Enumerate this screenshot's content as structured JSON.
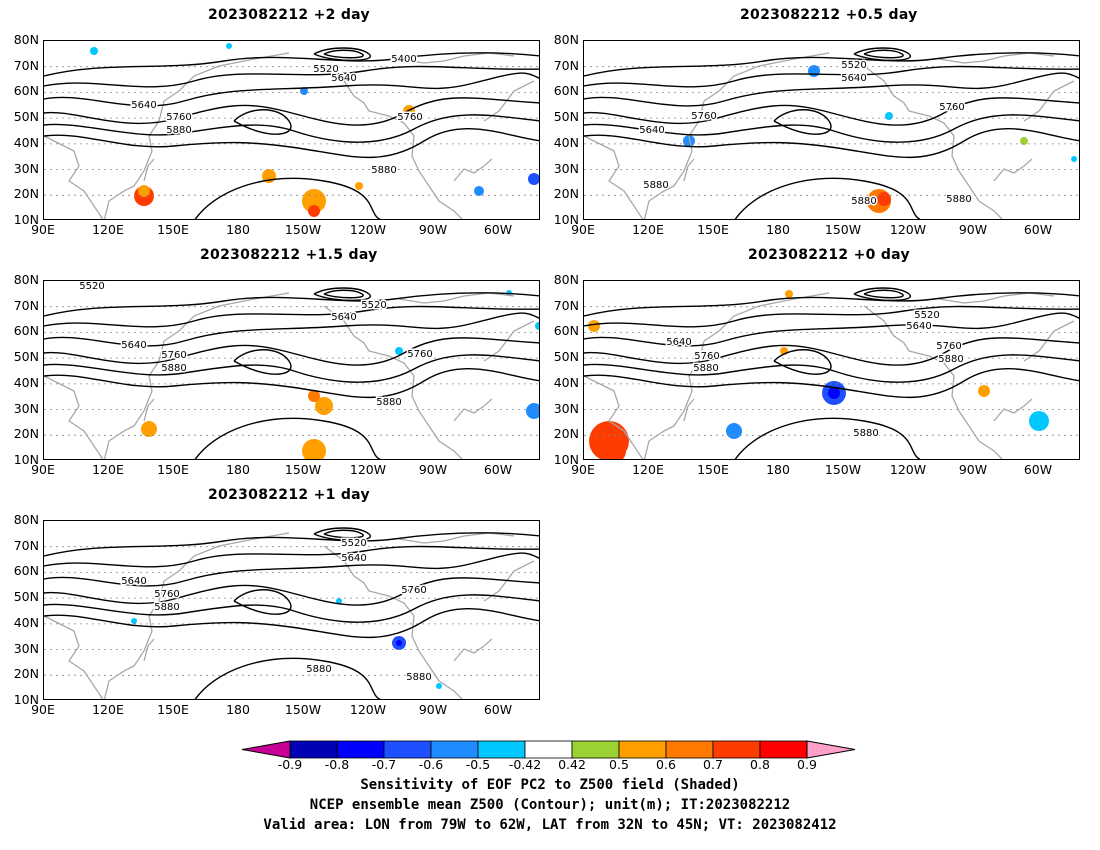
{
  "panels": [
    {
      "id": "p1",
      "title": "2023082212 +2 day",
      "contour_labels": [
        {
          "text": "5400"
        },
        {
          "text": "5520"
        },
        {
          "text": "5640"
        },
        {
          "text": "5640"
        },
        {
          "text": "5760"
        },
        {
          "text": "5760"
        },
        {
          "text": "5880"
        },
        {
          "text": "5880"
        }
      ]
    },
    {
      "id": "p2",
      "title": "2023082212 +0.5 day",
      "contour_labels": [
        {
          "text": "5520"
        },
        {
          "text": "5640"
        },
        {
          "text": "5640"
        },
        {
          "text": "5760"
        },
        {
          "text": "5760"
        },
        {
          "text": "5880"
        },
        {
          "text": "5880"
        },
        {
          "text": "5880"
        }
      ]
    },
    {
      "id": "p3",
      "title": "2023082212 +1.5 day",
      "contour_labels": [
        {
          "text": "5520"
        },
        {
          "text": "5520"
        },
        {
          "text": "5640"
        },
        {
          "text": "5640"
        },
        {
          "text": "5760"
        },
        {
          "text": "5760"
        },
        {
          "text": "5880"
        },
        {
          "text": "5880"
        }
      ]
    },
    {
      "id": "p4",
      "title": "2023082212 +0 day",
      "contour_labels": [
        {
          "text": "5520"
        },
        {
          "text": "5640"
        },
        {
          "text": "5640"
        },
        {
          "text": "5760"
        },
        {
          "text": "5760"
        },
        {
          "text": "5880"
        },
        {
          "text": "5880"
        },
        {
          "text": "5880"
        }
      ]
    },
    {
      "id": "p5",
      "title": "2023082212 +1 day",
      "contour_labels": [
        {
          "text": "5520"
        },
        {
          "text": "5640"
        },
        {
          "text": "5640"
        },
        {
          "text": "5760"
        },
        {
          "text": "5760"
        },
        {
          "text": "5880"
        },
        {
          "text": "5880"
        },
        {
          "text": "5880"
        }
      ]
    }
  ],
  "axes": {
    "lat_labels": [
      "80N",
      "70N",
      "60N",
      "50N",
      "40N",
      "30N",
      "20N",
      "10N"
    ],
    "lon_labels": [
      "90E",
      "120E",
      "150E",
      "180",
      "150W",
      "120W",
      "90W",
      "60W"
    ]
  },
  "colorbar": {
    "ticks": [
      "-0.9",
      "-0.8",
      "-0.7",
      "-0.6",
      "-0.5",
      "-0.42",
      "0.42",
      "0.5",
      "0.6",
      "0.7",
      "0.8",
      "0.9"
    ],
    "colors": [
      "#0000b4",
      "#0000ff",
      "#1e50ff",
      "#1e8cff",
      "#00c8ff",
      "#ffffff",
      "#9bd232",
      "#ffa000",
      "#ff7800",
      "#ff3c00",
      "#ff0000"
    ],
    "low_extend_color": "#c80096",
    "high_extend_color": "#ffa0c8"
  },
  "caption": {
    "line1": "Sensitivity of EOF PC2 to Z500 field (Shaded)",
    "line2": "NCEP ensemble mean Z500 (Contour); unit(m); IT:2023082212",
    "line3": "Valid area: LON from 79W to 62W, LAT from 32N to 45N; VT: 2023082412"
  }
}
